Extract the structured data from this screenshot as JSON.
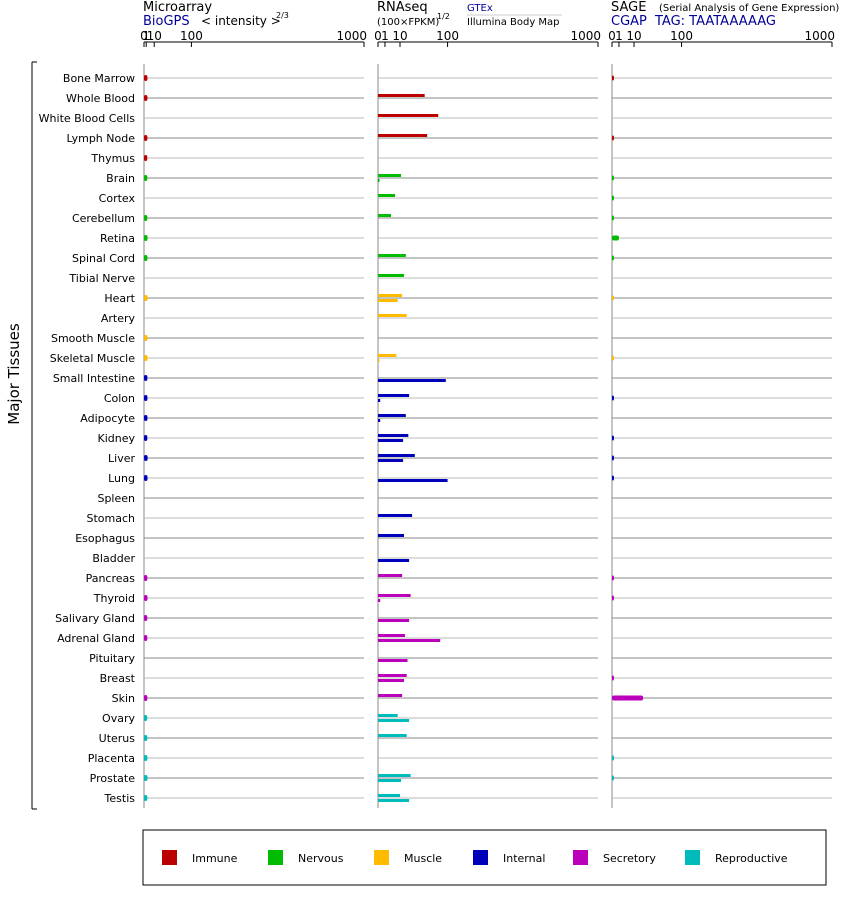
{
  "chart_data": {
    "type": "bar",
    "y_axis_label": "Major Tissues",
    "tick_labels": [
      "0",
      "1",
      "10",
      "100",
      "1000"
    ],
    "tick_values": [
      0,
      1,
      10,
      100,
      1000
    ],
    "scale": "power 2/3 for microarray, square root for RNAseq and SAGE",
    "tissues": [
      "Bone Marrow",
      "Whole Blood",
      "White Blood Cells",
      "Lymph Node",
      "Thymus",
      "Brain",
      "Cortex",
      "Cerebellum",
      "Retina",
      "Spinal Cord",
      "Tibial Nerve",
      "Heart",
      "Artery",
      "Smooth Muscle",
      "Skeletal Muscle",
      "Small Intestine",
      "Colon",
      "Adipocyte",
      "Kidney",
      "Liver",
      "Lung",
      "Spleen",
      "Stomach",
      "Esophagus",
      "Bladder",
      "Pancreas",
      "Thyroid",
      "Salivary Gland",
      "Adrenal Gland",
      "Pituitary",
      "Breast",
      "Skin",
      "Ovary",
      "Uterus",
      "Placenta",
      "Prostate",
      "Testis"
    ],
    "groups": [
      "immune",
      "immune",
      "immune",
      "immune",
      "immune",
      "nervous",
      "nervous",
      "nervous",
      "nervous",
      "nervous",
      "nervous",
      "muscle",
      "muscle",
      "muscle",
      "muscle",
      "internal",
      "internal",
      "internal",
      "internal",
      "internal",
      "internal",
      "internal",
      "internal",
      "internal",
      "internal",
      "secretory",
      "secretory",
      "secretory",
      "secretory",
      "secretory",
      "secretory",
      "secretory",
      "reproductive",
      "reproductive",
      "reproductive",
      "reproductive",
      "reproductive"
    ],
    "legend": [
      {
        "key": "immune",
        "label": "Immune",
        "color": "#bb0000"
      },
      {
        "key": "nervous",
        "label": "Nervous",
        "color": "#00bb00"
      },
      {
        "key": "muscle",
        "label": "Muscle",
        "color": "#ffbb00"
      },
      {
        "key": "internal",
        "label": "Internal",
        "color": "#0000bb"
      },
      {
        "key": "secretory",
        "label": "Secretory",
        "color": "#bb00bb"
      },
      {
        "key": "reproductive",
        "label": "Reproductive",
        "color": "#00bbbb"
      }
    ],
    "panels": [
      {
        "id": "microarray",
        "title": "Microarray",
        "subtitle": "BioGPS",
        "scale_note": "< intensity >",
        "exponent": "2/3",
        "values": [
          1.95,
          1.95,
          null,
          1.9,
          1.8,
          1.85,
          null,
          1.85,
          2.0,
          1.95,
          null,
          2.1,
          null,
          1.95,
          2.05,
          1.9,
          1.95,
          1.95,
          1.85,
          2.1,
          2.0,
          null,
          null,
          null,
          null,
          1.85,
          2.0,
          1.8,
          1.85,
          null,
          null,
          1.85,
          1.75,
          1.85,
          1.9,
          1.95,
          1.85
        ]
      },
      {
        "id": "rnaseq",
        "title": "RNAseq",
        "subtitle": "(100×FPKM)",
        "exponent": "1/2",
        "series_labels": [
          "GTEx",
          "Illumina Body Map"
        ],
        "gtex": [
          null,
          45,
          null,
          null,
          null,
          11,
          null,
          null,
          null,
          null,
          null,
          12,
          null,
          null,
          null,
          null,
          null,
          null,
          null,
          null,
          null,
          null,
          null,
          null,
          null,
          null,
          null,
          null,
          null,
          null,
          null,
          null,
          null,
          null,
          null,
          null,
          null
        ],
        "body_map": [
          null,
          null,
          null,
          null,
          null,
          null,
          null,
          null,
          null,
          null,
          null,
          null,
          null,
          null,
          null,
          null,
          null,
          null,
          null,
          null,
          null,
          null,
          null,
          null,
          null,
          null,
          null,
          null,
          null,
          null,
          null,
          null,
          null,
          null,
          null,
          null,
          null
        ]
      },
      {
        "id": "sage",
        "title": "SAGE",
        "title_note": "(Serial Analysis of Gene Expression)",
        "subtitle": "CGAP",
        "tag": "TAG: TAATAAAAAG",
        "values": [
          0.05,
          null,
          null,
          0.05,
          null,
          0.05,
          0.05,
          0.05,
          1.0,
          0.05,
          null,
          0.03,
          null,
          null,
          0.03,
          null,
          0.05,
          null,
          0.05,
          0.05,
          0.05,
          null,
          null,
          null,
          null,
          0.05,
          0.05,
          null,
          null,
          null,
          0.05,
          20,
          null,
          null,
          0.05,
          0.05,
          null
        ]
      }
    ]
  },
  "rnaseq_rows": {
    "gtex": [
      null,
      45,
      75,
      50,
      null,
      11,
      6,
      3.5,
      null,
      16,
      14,
      12,
      17,
      null,
      7,
      null,
      20,
      16,
      19,
      28,
      null,
      null,
      24,
      14,
      null,
      12,
      22,
      null,
      15,
      null,
      17,
      12,
      8,
      17,
      null,
      22,
      10
    ],
    "body_map": [
      null,
      null,
      null,
      null,
      null,
      0.05,
      null,
      null,
      null,
      null,
      null,
      8,
      null,
      null,
      0.05,
      95,
      0.1,
      0.1,
      13,
      13,
      100,
      null,
      null,
      null,
      20,
      null,
      0.1,
      20,
      80,
      18,
      14,
      null,
      20,
      null,
      null,
      11,
      20
    ]
  }
}
